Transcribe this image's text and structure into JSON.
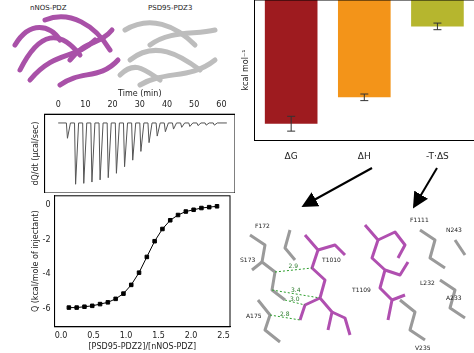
{
  "structure": {
    "labels": [
      "nNOS-PDZ",
      "PSD95-PDZ3"
    ]
  },
  "hbond_panel": {
    "residues": [
      "F172",
      "S173",
      "A175",
      "T1010"
    ],
    "distances": [
      "2.9",
      "3.4",
      "3.0",
      "2.8"
    ]
  },
  "contact_panel": {
    "residues": [
      "F1111",
      "N243",
      "L232",
      "A233",
      "T1109",
      "V235"
    ]
  },
  "chart_data": [
    {
      "type": "line",
      "x_label": "Time (min)",
      "y_label": "dQ/dt (μcal/sec)",
      "x": [
        0,
        3,
        3.4,
        4.5,
        6,
        6.4,
        7.5,
        9,
        9.4,
        10.5,
        12,
        12.4,
        13.5,
        15,
        15.4,
        16.5,
        18,
        18.4,
        19.5,
        21,
        21.4,
        22.5,
        24,
        24.4,
        25.5,
        27,
        27.4,
        28.5,
        30,
        30.4,
        31.5,
        33,
        33.4,
        34.5,
        36,
        36.4,
        37.5,
        39,
        39.4,
        40.5,
        42,
        42.4,
        43.5,
        45,
        45.4,
        46.5,
        48,
        48.4,
        49.5,
        51,
        51.4,
        52.5,
        54,
        54.4,
        55.5,
        57,
        57.4,
        58.5,
        62
      ],
      "values": [
        0,
        0,
        -0.35,
        0,
        0,
        -1.4,
        0,
        0,
        -1.38,
        0,
        0,
        -1.35,
        0,
        0,
        -1.3,
        0,
        0,
        -1.25,
        0,
        0,
        -1.15,
        0,
        0,
        -1.0,
        0,
        0,
        -0.85,
        0,
        0,
        -0.65,
        0,
        0,
        -0.45,
        0,
        0,
        -0.3,
        0,
        0,
        -0.2,
        0,
        0,
        -0.14,
        0,
        0,
        -0.1,
        0,
        0,
        -0.08,
        0,
        0,
        -0.06,
        0,
        0,
        -0.05,
        0,
        0,
        -0.05,
        0,
        0
      ],
      "color": "#555555",
      "marker": "none",
      "line_style": "solid",
      "xlim": [
        -5,
        65
      ],
      "xticks": [
        0,
        10,
        20,
        30,
        40,
        50,
        60
      ],
      "ylim": [
        -1.6,
        0.2
      ],
      "tick_labels": "x",
      "grid": false
    },
    {
      "type": "line",
      "x_label": "[PSD95-PDZ2]/[nNOS-PDZ]",
      "y_label": "Q (kcal/mole of injectant)",
      "x": [
        0.12,
        0.24,
        0.36,
        0.48,
        0.6,
        0.72,
        0.84,
        0.96,
        1.08,
        1.2,
        1.32,
        1.44,
        1.56,
        1.68,
        1.8,
        1.92,
        2.04,
        2.16,
        2.28,
        2.4
      ],
      "values": [
        -5.9,
        -5.9,
        -5.85,
        -5.8,
        -5.7,
        -5.6,
        -5.4,
        -5.1,
        -4.6,
        -3.9,
        -3.0,
        -2.1,
        -1.4,
        -0.9,
        -0.6,
        -0.4,
        -0.3,
        -0.2,
        -0.15,
        -0.1
      ],
      "color": "#000000",
      "marker": "square",
      "line_style": "solid",
      "xlim": [
        -0.1,
        2.6
      ],
      "xticks": [
        {
          "value": 0,
          "label": "0.0"
        },
        {
          "value": 0.5,
          "label": "0.5"
        },
        {
          "value": 1,
          "label": "1.0"
        },
        {
          "value": 1.5,
          "label": "1.5"
        },
        {
          "value": 2,
          "label": "2.0"
        },
        {
          "value": 2.5,
          "label": "2.5"
        }
      ],
      "ylim": [
        -7,
        0.5
      ],
      "yticks": [
        0,
        -2,
        -4,
        -6
      ],
      "grid": false
    },
    {
      "type": "bar",
      "y_label": "kcal mol⁻¹",
      "categories": [
        "ΔG",
        "ΔH",
        "-T·ΔS"
      ],
      "values": [
        -7.5,
        -5.9,
        -1.6
      ],
      "errors": [
        0.45,
        0.2,
        0.2
      ],
      "colors": [
        "#9e1b1f",
        "#f39419",
        "#b6b62e"
      ],
      "ylim": [
        -8.5,
        0
      ],
      "tick_labels": "x",
      "grid": false
    }
  ]
}
